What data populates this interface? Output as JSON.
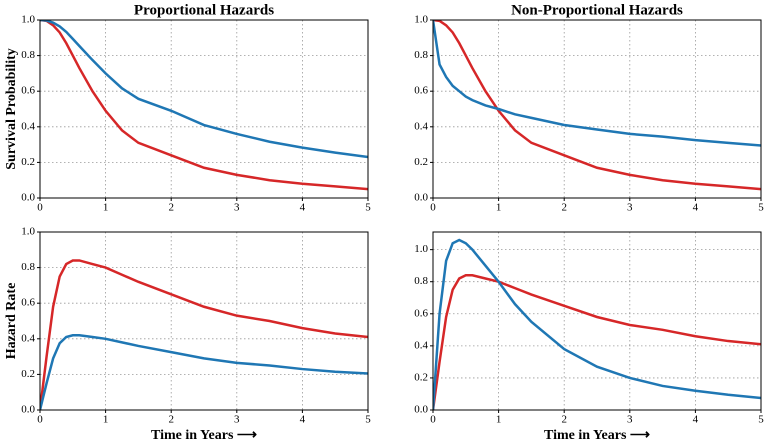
{
  "chart_data": [
    {
      "type": "line",
      "title": "Proportional Hazards",
      "y_label": "Survival Probability",
      "x": [
        0,
        0.1,
        0.2,
        0.3,
        0.4,
        0.5,
        0.6,
        0.8,
        1,
        1.25,
        1.5,
        2,
        2.5,
        3,
        3.5,
        4,
        4.5,
        5
      ],
      "series": [
        {
          "color": "#d62728",
          "values": [
            1.0,
            0.995,
            0.97,
            0.93,
            0.87,
            0.8,
            0.73,
            0.6,
            0.49,
            0.38,
            0.31,
            0.24,
            0.17,
            0.13,
            0.1,
            0.08,
            0.065,
            0.05
          ]
        },
        {
          "color": "#1f77b4",
          "values": [
            1.0,
            0.997,
            0.985,
            0.964,
            0.933,
            0.894,
            0.854,
            0.775,
            0.7,
            0.616,
            0.557,
            0.49,
            0.41,
            0.36,
            0.316,
            0.283,
            0.255,
            0.23
          ]
        }
      ],
      "xlim": [
        0,
        5
      ],
      "xticks": [
        0,
        1,
        2,
        3,
        4,
        5
      ],
      "ylim": [
        0,
        1
      ],
      "yticks": [
        {
          "value": 0,
          "label": "0.0"
        },
        0.2,
        0.4,
        0.6,
        0.8,
        {
          "value": 1,
          "label": "1.0"
        }
      ],
      "grid": true
    },
    {
      "type": "line",
      "title": "Non-Proportional Hazards",
      "x": [
        0,
        0.1,
        0.2,
        0.3,
        0.4,
        0.5,
        0.6,
        0.8,
        1,
        1.25,
        1.5,
        2,
        2.5,
        3,
        3.5,
        4,
        4.5,
        5
      ],
      "series": [
        {
          "color": "#d62728",
          "values": [
            1.0,
            0.995,
            0.97,
            0.93,
            0.87,
            0.8,
            0.73,
            0.6,
            0.49,
            0.38,
            0.31,
            0.24,
            0.17,
            0.13,
            0.1,
            0.08,
            0.065,
            0.05
          ]
        },
        {
          "color": "#1f77b4",
          "values": [
            1.0,
            0.75,
            0.68,
            0.63,
            0.6,
            0.57,
            0.55,
            0.52,
            0.5,
            0.47,
            0.45,
            0.41,
            0.385,
            0.36,
            0.345,
            0.325,
            0.31,
            0.295
          ]
        }
      ],
      "xlim": [
        0,
        5
      ],
      "xticks": [
        0,
        1,
        2,
        3,
        4,
        5
      ],
      "ylim": [
        0,
        1
      ],
      "yticks": [
        {
          "value": 0,
          "label": "0.0"
        },
        0.2,
        0.4,
        0.6,
        0.8,
        {
          "value": 1,
          "label": "1.0"
        }
      ],
      "grid": true
    },
    {
      "type": "line",
      "y_label": "Hazard Rate",
      "x_label": "Time in Years ⟶",
      "x": [
        0,
        0.1,
        0.2,
        0.3,
        0.4,
        0.5,
        0.6,
        0.8,
        1,
        1.25,
        1.5,
        2,
        2.5,
        3,
        3.5,
        4,
        4.5,
        5
      ],
      "series": [
        {
          "color": "#d62728",
          "values": [
            0,
            0.3,
            0.58,
            0.75,
            0.82,
            0.84,
            0.84,
            0.82,
            0.8,
            0.76,
            0.72,
            0.65,
            0.58,
            0.53,
            0.5,
            0.46,
            0.43,
            0.41
          ]
        },
        {
          "color": "#1f77b4",
          "values": [
            0,
            0.15,
            0.29,
            0.375,
            0.41,
            0.42,
            0.42,
            0.41,
            0.4,
            0.38,
            0.36,
            0.325,
            0.29,
            0.265,
            0.25,
            0.23,
            0.215,
            0.205
          ]
        }
      ],
      "xlim": [
        0,
        5
      ],
      "xticks": [
        0,
        1,
        2,
        3,
        4,
        5
      ],
      "ylim": [
        0,
        1
      ],
      "yticks": [
        {
          "value": 0,
          "label": "0.0"
        },
        0.2,
        0.4,
        0.6,
        0.8,
        {
          "value": 1,
          "label": "1.0"
        }
      ],
      "grid": true
    },
    {
      "type": "line",
      "x_label": "Time in Years ⟶",
      "x": [
        0,
        0.1,
        0.2,
        0.3,
        0.4,
        0.5,
        0.6,
        0.8,
        1,
        1.25,
        1.5,
        2,
        2.5,
        3,
        3.5,
        4,
        4.5,
        5
      ],
      "series": [
        {
          "color": "#d62728",
          "values": [
            0,
            0.3,
            0.58,
            0.75,
            0.82,
            0.84,
            0.84,
            0.82,
            0.8,
            0.76,
            0.72,
            0.65,
            0.58,
            0.53,
            0.5,
            0.46,
            0.43,
            0.41
          ]
        },
        {
          "color": "#1f77b4",
          "values": [
            0,
            0.6,
            0.93,
            1.04,
            1.06,
            1.04,
            1.0,
            0.9,
            0.8,
            0.66,
            0.55,
            0.38,
            0.27,
            0.2,
            0.15,
            0.12,
            0.095,
            0.075
          ]
        }
      ],
      "xlim": [
        0,
        5
      ],
      "xticks": [
        0,
        1,
        2,
        3,
        4,
        5
      ],
      "ylim": [
        0,
        1.11
      ],
      "yticks": [
        {
          "value": 0,
          "label": "0.0"
        },
        0.2,
        0.4,
        0.6,
        0.8,
        {
          "value": 1,
          "label": "1.0"
        }
      ],
      "grid": true
    }
  ]
}
